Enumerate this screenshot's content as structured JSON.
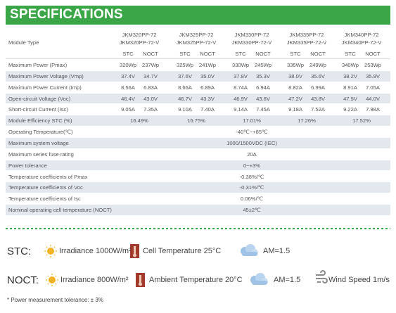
{
  "header": {
    "title": "SPECIFICATIONS"
  },
  "table": {
    "module_type_label": "Module Type",
    "models": [
      {
        "line1": "JKM320PP-72",
        "line2": "JKM320PP-72-V",
        "sub": [
          "STC",
          "NOCT"
        ]
      },
      {
        "line1": "JKM325PP-72",
        "line2": "JKM325PP-72-V",
        "sub": [
          "STC",
          "NOCT"
        ]
      },
      {
        "line1": "JKM330PP-72",
        "line2": "JKM330PP-72-V",
        "sub": [
          "STC",
          "NOCT"
        ]
      },
      {
        "line1": "JKM335PP-72",
        "line2": "JKM335PP-72-V",
        "sub": [
          "STC",
          "NOCT"
        ]
      },
      {
        "line1": "JKM340PP-72",
        "line2": "JKM340PP-72-V",
        "sub": [
          "STC",
          "NOCT"
        ]
      }
    ],
    "rows": [
      {
        "label": "Maximum Power (Pmax)",
        "cells": [
          "320Wp",
          "237Wp",
          "325Wp",
          "241Wp",
          "330Wp",
          "245Wp",
          "335Wp",
          "249Wp",
          "340Wp",
          "253Wp"
        ]
      },
      {
        "label": "Maximum Power Voltage (Vmp)",
        "cells": [
          "37.4V",
          "34.7V",
          "37.6V",
          "35.0V",
          "37.8V",
          "35.3V",
          "38.0V",
          "35.6V",
          "38.2V",
          "35.9V"
        ]
      },
      {
        "label": "Maximum Power Current (Imp)",
        "cells": [
          "8.56A",
          "6.83A",
          "8.66A",
          "6.89A",
          "8.74A",
          "6.94A",
          "8.82A",
          "6.99A",
          "8.91A",
          "7.05A"
        ]
      },
      {
        "label": "Open-circuit Voltage (Voc)",
        "cells": [
          "46.4V",
          "43.0V",
          "46.7V",
          "43.3V",
          "46.9V",
          "43.6V",
          "47.2V",
          "43.8V",
          "47.5V",
          "44.0V"
        ]
      },
      {
        "label": "Short-circuit Current (Isc)",
        "cells": [
          "9.05A",
          "7.35A",
          "9.10A",
          "7.40A",
          "9.14A",
          "7.45A",
          "9.18A",
          "7.52A",
          "9.22A",
          "7.98A"
        ]
      },
      {
        "label": "Module Efficiency STC (%)",
        "cells": [
          "16.49%",
          "16.75%",
          "17.01%",
          "17.26%",
          "17.52%"
        ]
      },
      {
        "label": "Operating Temperature(℃)",
        "cells": [
          "-40℃~+85℃"
        ]
      },
      {
        "label": "Maximum system voltage",
        "cells": [
          "1000/1500VDC (IEC)"
        ]
      },
      {
        "label": "Maximum series fuse rating",
        "cells": [
          "20A"
        ]
      },
      {
        "label": "Power tolerance",
        "cells": [
          "0~+3%"
        ]
      },
      {
        "label": "Temperature coefficients of Pmax",
        "cells": [
          "-0.38%/℃"
        ]
      },
      {
        "label": "Temperature coefficients of Voc",
        "cells": [
          "-0.31%/℃"
        ]
      },
      {
        "label": "Temperature coefficients of Isc",
        "cells": [
          "0.06%/℃"
        ]
      },
      {
        "label": "Nominal operating cell temperature  (NOCT)",
        "cells": [
          "45±2℃"
        ]
      }
    ]
  },
  "conditions": {
    "stc": {
      "label": "STC:",
      "irradiance": "Irradiance 1000W/m²",
      "temperature": "Cell Temperature 25°C",
      "am": "AM=1.5"
    },
    "noct": {
      "label": "NOCT:",
      "irradiance": "Irradiance 800W/m²",
      "temperature": "Ambient Temperature 20°C",
      "am": "AM=1.5",
      "wind": "Wind Speed 1m/s"
    }
  },
  "footnote": "* Power measurement tolerance: ± 3%"
}
